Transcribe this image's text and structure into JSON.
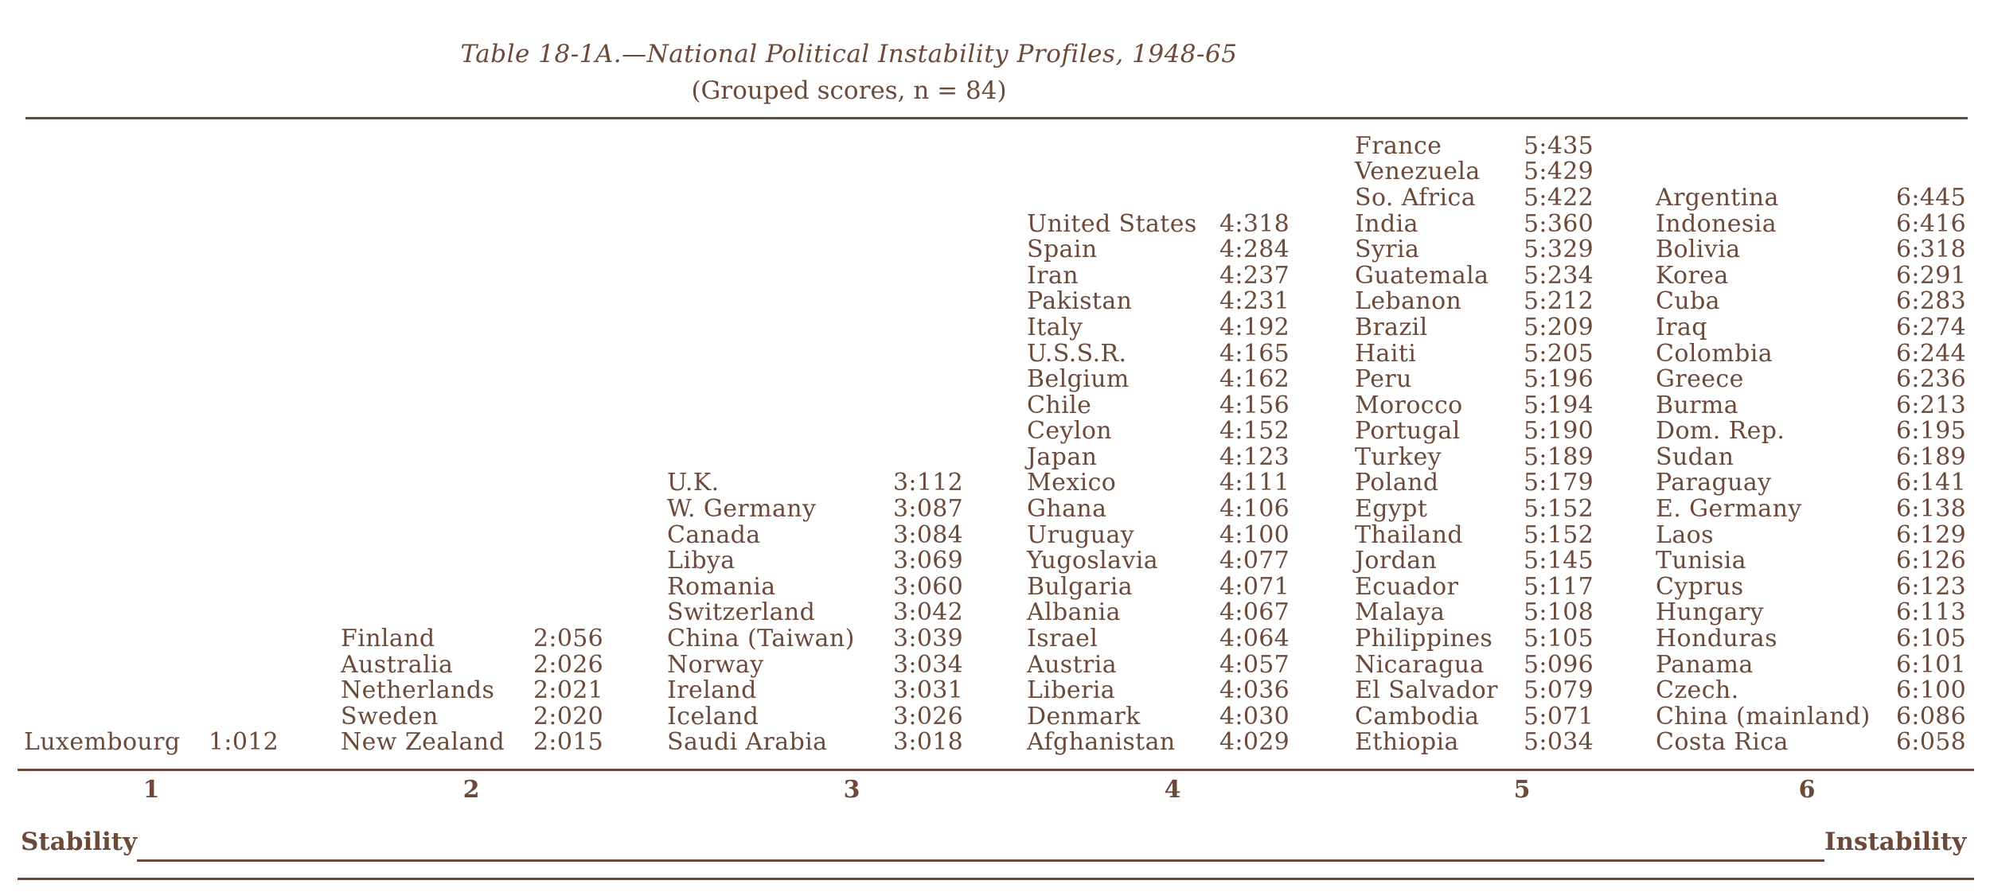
{
  "title": "Table 18-1A.—National Political Instability Profiles, 1948-65",
  "subtitle": "(Grouped scores, n = 84)",
  "groups": [
    {
      "number": "1",
      "entries": [
        {
          "country": "Luxembourg",
          "score": "1:012"
        }
      ]
    },
    {
      "number": "2",
      "entries": [
        {
          "country": "Finland",
          "score": "2:056"
        },
        {
          "country": "Australia",
          "score": "2:026"
        },
        {
          "country": "Netherlands",
          "score": "2:021"
        },
        {
          "country": "Sweden",
          "score": "2:020"
        },
        {
          "country": "New Zealand",
          "score": "2:015"
        }
      ]
    },
    {
      "number": "3",
      "entries": [
        {
          "country": "U.K.",
          "score": "3:112"
        },
        {
          "country": "W. Germany",
          "score": "3:087"
        },
        {
          "country": "Canada",
          "score": "3:084"
        },
        {
          "country": "Libya",
          "score": "3:069"
        },
        {
          "country": "Romania",
          "score": "3:060"
        },
        {
          "country": "Switzerland",
          "score": "3:042"
        },
        {
          "country": "China (Taiwan)",
          "score": "3:039"
        },
        {
          "country": "Norway",
          "score": "3:034"
        },
        {
          "country": "Ireland",
          "score": "3:031"
        },
        {
          "country": "Iceland",
          "score": "3:026"
        },
        {
          "country": "Saudi Arabia",
          "score": "3:018"
        }
      ]
    },
    {
      "number": "4",
      "entries": [
        {
          "country": "United States",
          "score": "4:318"
        },
        {
          "country": "Spain",
          "score": "4:284"
        },
        {
          "country": "Iran",
          "score": "4:237"
        },
        {
          "country": "Pakistan",
          "score": "4:231"
        },
        {
          "country": "Italy",
          "score": "4:192"
        },
        {
          "country": "U.S.S.R.",
          "score": "4:165"
        },
        {
          "country": "Belgium",
          "score": "4:162"
        },
        {
          "country": "Chile",
          "score": "4:156"
        },
        {
          "country": "Ceylon",
          "score": "4:152"
        },
        {
          "country": "Japan",
          "score": "4:123"
        },
        {
          "country": "Mexico",
          "score": "4:111"
        },
        {
          "country": "Ghana",
          "score": "4:106"
        },
        {
          "country": "Uruguay",
          "score": "4:100"
        },
        {
          "country": "Yugoslavia",
          "score": "4:077"
        },
        {
          "country": "Bulgaria",
          "score": "4:071"
        },
        {
          "country": "Albania",
          "score": "4:067"
        },
        {
          "country": "Israel",
          "score": "4:064"
        },
        {
          "country": "Austria",
          "score": "4:057"
        },
        {
          "country": "Liberia",
          "score": "4:036"
        },
        {
          "country": "Denmark",
          "score": "4:030"
        },
        {
          "country": "Afghanistan",
          "score": "4:029"
        }
      ]
    },
    {
      "number": "5",
      "entries": [
        {
          "country": "France",
          "score": "5:435"
        },
        {
          "country": "Venezuela",
          "score": "5:429"
        },
        {
          "country": "So. Africa",
          "score": "5:422"
        },
        {
          "country": "India",
          "score": "5:360"
        },
        {
          "country": "Syria",
          "score": "5:329"
        },
        {
          "country": "Guatemala",
          "score": "5:234"
        },
        {
          "country": "Lebanon",
          "score": "5:212"
        },
        {
          "country": "Brazil",
          "score": "5:209"
        },
        {
          "country": "Haiti",
          "score": "5:205"
        },
        {
          "country": "Peru",
          "score": "5:196"
        },
        {
          "country": "Morocco",
          "score": "5:194"
        },
        {
          "country": "Portugal",
          "score": "5:190"
        },
        {
          "country": "Turkey",
          "score": "5:189"
        },
        {
          "country": "Poland",
          "score": "5:179"
        },
        {
          "country": "Egypt",
          "score": "5:152"
        },
        {
          "country": "Thailand",
          "score": "5:152"
        },
        {
          "country": "Jordan",
          "score": "5:145"
        },
        {
          "country": "Ecuador",
          "score": "5:117"
        },
        {
          "country": "Malaya",
          "score": "5:108"
        },
        {
          "country": "Philippines",
          "score": "5:105"
        },
        {
          "country": "Nicaragua",
          "score": "5:096"
        },
        {
          "country": "El Salvador",
          "score": "5:079"
        },
        {
          "country": "Cambodia",
          "score": "5:071"
        },
        {
          "country": "Ethiopia",
          "score": "5:034"
        }
      ]
    },
    {
      "number": "6",
      "entries": [
        {
          "country": "Argentina",
          "score": "6:445"
        },
        {
          "country": "Indonesia",
          "score": "6:416"
        },
        {
          "country": "Bolivia",
          "score": "6:318"
        },
        {
          "country": "Korea",
          "score": "6:291"
        },
        {
          "country": "Cuba",
          "score": "6:283"
        },
        {
          "country": "Iraq",
          "score": "6:274"
        },
        {
          "country": "Colombia",
          "score": "6:244"
        },
        {
          "country": "Greece",
          "score": "6:236"
        },
        {
          "country": "Burma",
          "score": "6:213"
        },
        {
          "country": "Dom. Rep.",
          "score": "6:195"
        },
        {
          "country": "Sudan",
          "score": "6:189"
        },
        {
          "country": "Paraguay",
          "score": "6:141"
        },
        {
          "country": "E. Germany",
          "score": "6:138"
        },
        {
          "country": "Laos",
          "score": "6:129"
        },
        {
          "country": "Tunisia",
          "score": "6:126"
        },
        {
          "country": "Cyprus",
          "score": "6:123"
        },
        {
          "country": "Hungary",
          "score": "6:113"
        },
        {
          "country": "Honduras",
          "score": "6:105"
        },
        {
          "country": "Panama",
          "score": "6:101"
        },
        {
          "country": "Czech.",
          "score": "6:100"
        },
        {
          "country": "China (mainland)",
          "score": "6:086"
        },
        {
          "country": "Costa Rica",
          "score": "6:058"
        }
      ]
    }
  ],
  "scale": {
    "left_label": "Stability",
    "right_label": "Instability"
  }
}
